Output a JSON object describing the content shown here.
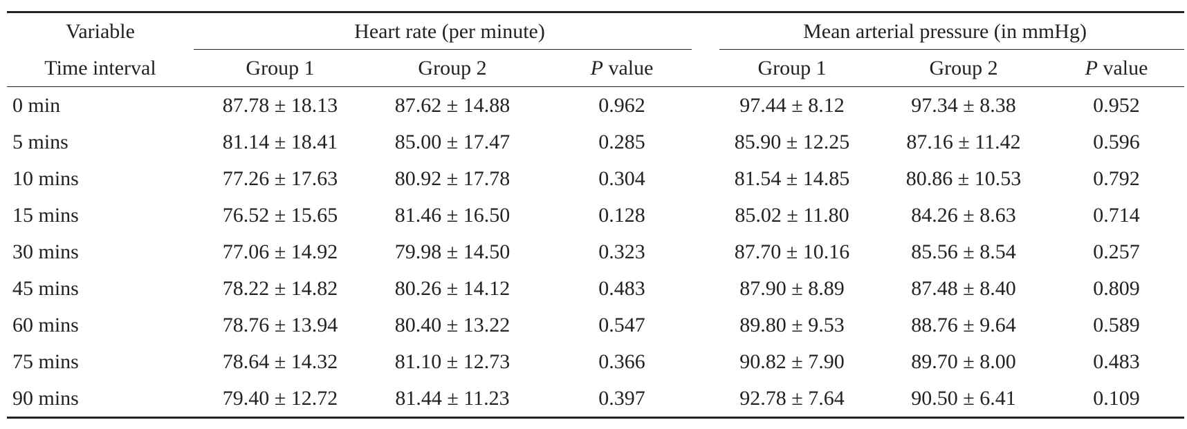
{
  "table": {
    "header": {
      "variable": "Variable",
      "time_interval": "Time interval",
      "heart_rate": "Heart rate (per minute)",
      "map": "Mean arterial pressure (in mmHg)",
      "group1": "Group 1",
      "group2": "Group 2",
      "p_letter": "P",
      "p_value_word": "value"
    },
    "rows": [
      {
        "time": "0 min",
        "hr_g1": "87.78 ± 18.13",
        "hr_g2": "87.62 ± 14.88",
        "hr_p": "0.962",
        "map_g1": "97.44 ± 8.12",
        "map_g2": "97.34 ± 8.38",
        "map_p": "0.952"
      },
      {
        "time": "5 mins",
        "hr_g1": "81.14 ± 18.41",
        "hr_g2": "85.00 ± 17.47",
        "hr_p": "0.285",
        "map_g1": "85.90 ± 12.25",
        "map_g2": "87.16 ± 11.42",
        "map_p": "0.596"
      },
      {
        "time": "10 mins",
        "hr_g1": "77.26 ± 17.63",
        "hr_g2": "80.92 ± 17.78",
        "hr_p": "0.304",
        "map_g1": "81.54 ± 14.85",
        "map_g2": "80.86 ± 10.53",
        "map_p": "0.792"
      },
      {
        "time": "15 mins",
        "hr_g1": "76.52 ± 15.65",
        "hr_g2": "81.46 ± 16.50",
        "hr_p": "0.128",
        "map_g1": "85.02 ± 11.80",
        "map_g2": "84.26 ± 8.63",
        "map_p": "0.714"
      },
      {
        "time": "30 mins",
        "hr_g1": "77.06 ± 14.92",
        "hr_g2": "79.98 ± 14.50",
        "hr_p": "0.323",
        "map_g1": "87.70 ± 10.16",
        "map_g2": "85.56 ± 8.54",
        "map_p": "0.257"
      },
      {
        "time": "45 mins",
        "hr_g1": "78.22 ± 14.82",
        "hr_g2": "80.26 ± 14.12",
        "hr_p": "0.483",
        "map_g1": "87.90 ± 8.89",
        "map_g2": "87.48 ± 8.40",
        "map_p": "0.809"
      },
      {
        "time": "60 mins",
        "hr_g1": "78.76 ± 13.94",
        "hr_g2": "80.40 ± 13.22",
        "hr_p": "0.547",
        "map_g1": "89.80 ± 9.53",
        "map_g2": "88.76 ± 9.64",
        "map_p": "0.589"
      },
      {
        "time": "75 mins",
        "hr_g1": "78.64 ± 14.32",
        "hr_g2": "81.10 ± 12.73",
        "hr_p": "0.366",
        "map_g1": "90.82 ± 7.90",
        "map_g2": "89.70 ± 8.00",
        "map_p": "0.483"
      },
      {
        "time": "90 mins",
        "hr_g1": "79.40 ± 12.72",
        "hr_g2": "81.44 ± 11.23",
        "hr_p": "0.397",
        "map_g1": "92.78 ± 7.64",
        "map_g2": "90.50 ± 6.41",
        "map_p": "0.109"
      }
    ]
  }
}
